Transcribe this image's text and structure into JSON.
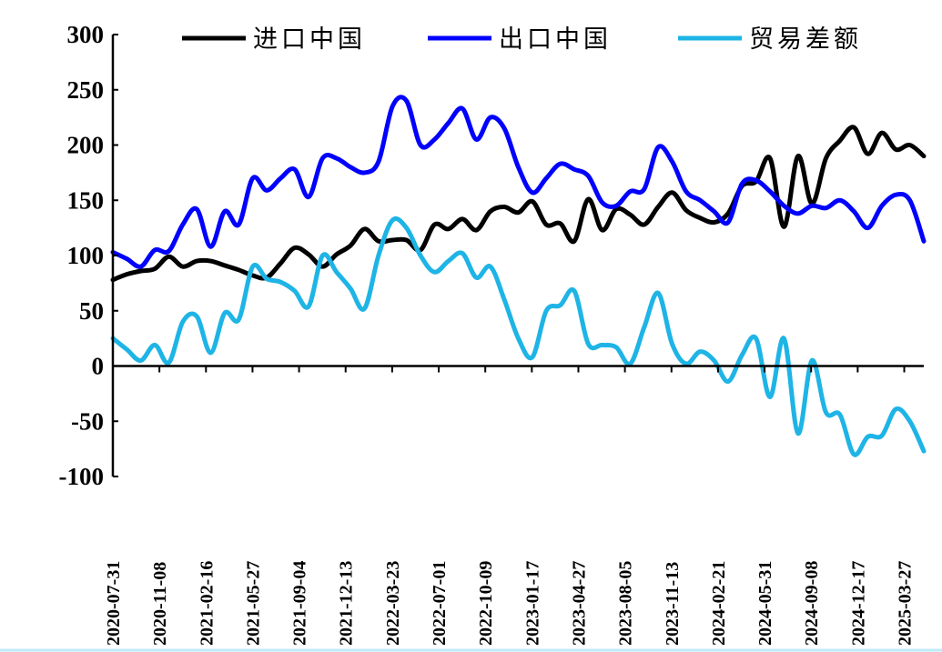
{
  "chart_data": {
    "type": "line",
    "title": "",
    "xlabel": "",
    "ylabel": "",
    "ylim": [
      -100,
      300
    ],
    "yticks": [
      300,
      250,
      200,
      150,
      100,
      50,
      0,
      -50,
      -100
    ],
    "xtick_labels": [
      "2020-07-31",
      "2020-11-08",
      "2021-02-16",
      "2021-05-27",
      "2021-09-04",
      "2021-12-13",
      "2022-03-23",
      "2022-07-01",
      "2022-10-09",
      "2023-01-17",
      "2023-04-27",
      "2023-08-05",
      "2023-11-13",
      "2024-02-21",
      "2024-05-31",
      "2024-09-08",
      "2024-12-17",
      "2025-03-27"
    ],
    "x_start": "2020-07-31",
    "x_end": "2025-05-08",
    "grid": false,
    "legend_position": "top",
    "series": [
      {
        "name": "进口中国",
        "color": "#000000",
        "values": [
          78,
          83,
          86,
          88,
          99,
          90,
          95,
          95,
          91,
          87,
          82,
          80,
          93,
          107,
          101,
          90,
          101,
          109,
          124,
          113,
          114,
          114,
          105,
          128,
          124,
          133,
          123,
          140,
          144,
          139,
          149,
          128,
          129,
          113,
          151,
          123,
          142,
          137,
          128,
          144,
          157,
          141,
          134,
          130,
          138,
          163,
          167,
          188,
          126,
          190,
          147,
          188,
          204,
          216,
          192,
          211,
          196,
          200,
          190
        ]
      },
      {
        "name": "出口中国",
        "color": "#0000FF",
        "values": [
          103,
          97,
          90,
          105,
          104,
          128,
          142,
          108,
          140,
          128,
          170,
          159,
          170,
          178,
          153,
          188,
          188,
          180,
          175,
          185,
          235,
          240,
          200,
          205,
          220,
          233,
          205,
          225,
          215,
          180,
          157,
          170,
          183,
          178,
          172,
          148,
          145,
          158,
          160,
          198,
          185,
          158,
          150,
          140,
          130,
          165,
          168,
          158,
          145,
          138,
          145,
          143,
          150,
          140,
          125,
          145,
          155,
          150,
          113
        ]
      },
      {
        "name": "贸易差额",
        "color": "#1EB4E6",
        "values": [
          25,
          15,
          5,
          19,
          3,
          40,
          45,
          12,
          48,
          42,
          90,
          79,
          76,
          68,
          54,
          100,
          85,
          70,
          52,
          100,
          132,
          125,
          100,
          85,
          95,
          102,
          80,
          90,
          60,
          25,
          8,
          50,
          55,
          68,
          20,
          19,
          17,
          2,
          35,
          66,
          20,
          2,
          13,
          5,
          -14,
          10,
          25,
          -28,
          25,
          -61,
          5,
          -42,
          -44,
          -80,
          -64,
          -63,
          -39,
          -50,
          -77
        ]
      }
    ]
  }
}
